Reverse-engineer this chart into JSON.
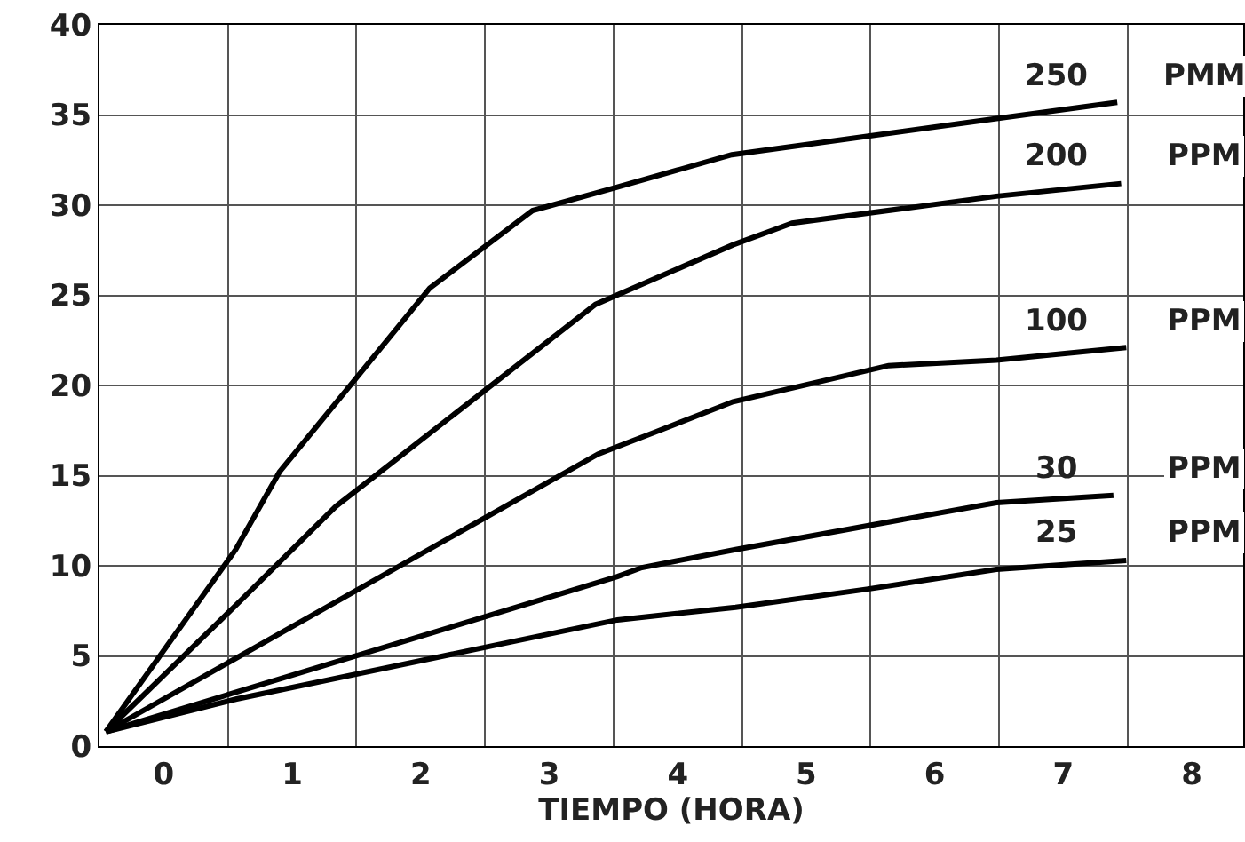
{
  "chart_data": {
    "type": "line",
    "xlabel": "TIEMPO (HORA)",
    "xlim": [
      -0.5,
      8.4
    ],
    "xticks": [
      0,
      1,
      2,
      3,
      4,
      5,
      6,
      7,
      8
    ],
    "ylim": [
      0,
      40
    ],
    "yticks": [
      0,
      5,
      10,
      15,
      20,
      25,
      30,
      35,
      40
    ],
    "grid": true,
    "legend": false,
    "marker": "none",
    "line_style": "solid",
    "series": [
      {
        "name": "250 PMM",
        "color": "#000000",
        "x": [
          -0.45,
          0.56,
          0.9,
          1.6,
          2.07,
          2.87,
          3.53,
          4.42,
          6.48,
          7.42
        ],
        "values": [
          0.8,
          10.9,
          15.2,
          21.3,
          25.4,
          29.7,
          31,
          32.8,
          34.8,
          35.7
        ]
      },
      {
        "name": "200 PPM",
        "color": "#000000",
        "x": [
          -0.45,
          0.56,
          1.34,
          3.36,
          4.43,
          4.89,
          6.48,
          7.45
        ],
        "values": [
          0.8,
          7.8,
          13.3,
          24.5,
          27.8,
          29,
          30.5,
          31.2
        ]
      },
      {
        "name": "100 PPM",
        "color": "#000000",
        "x": [
          -0.45,
          3.38,
          3.82,
          4.43,
          5.64,
          6.48,
          7.49
        ],
        "values": [
          0.8,
          16.2,
          17.4,
          19.1,
          21.1,
          21.4,
          22.1
        ]
      },
      {
        "name": "30 PPM",
        "color": "#000000",
        "x": [
          -0.45,
          3.53,
          3.72,
          4.45,
          6.48,
          7.39
        ],
        "values": [
          0.8,
          9.4,
          9.9,
          10.9,
          13.5,
          13.9
        ]
      },
      {
        "name": "25 PPM",
        "color": "#000000",
        "x": [
          -0.45,
          0.56,
          3.53,
          4.45,
          5.47,
          6.48,
          7.49
        ],
        "values": [
          0.8,
          2.6,
          7,
          7.7,
          8.7,
          9.8,
          10.3
        ]
      }
    ]
  }
}
